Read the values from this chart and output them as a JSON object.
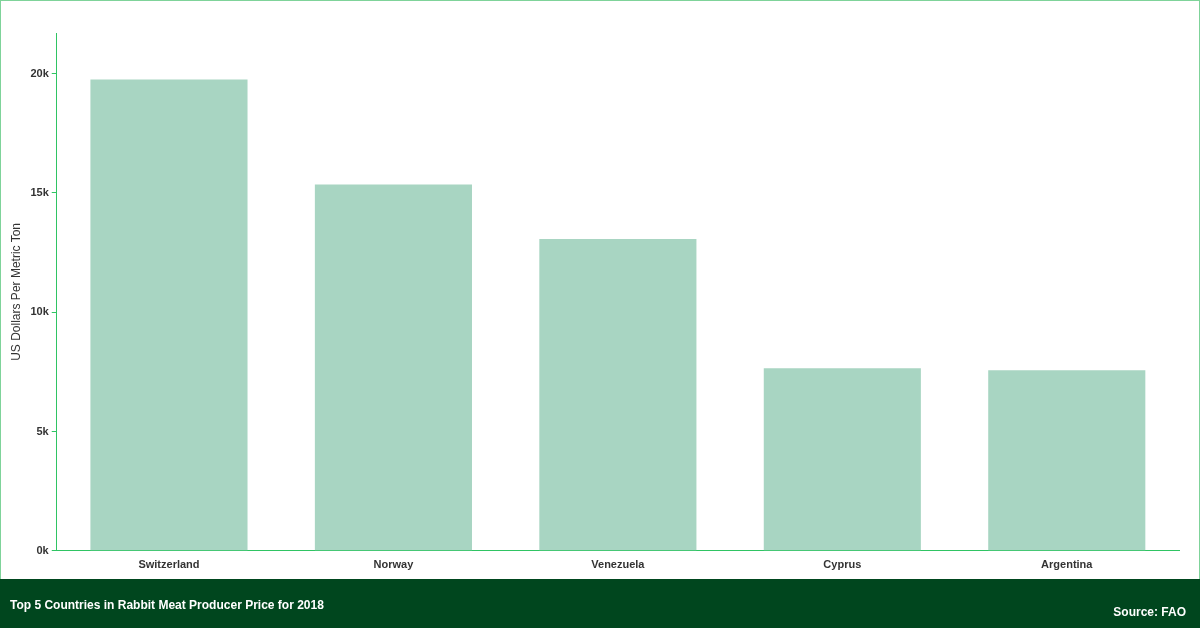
{
  "chart_data": {
    "type": "bar",
    "title": "Top 5 Countries in Rabbit Meat Producer Price for 2018",
    "ylabel": "US Dollars Per Metric Ton",
    "categories": [
      "Switzerland",
      "Norway",
      "Venezuela",
      "Cyprus",
      "Argentina"
    ],
    "values": [
      19750,
      15350,
      13070,
      7650,
      7570
    ],
    "color": "#a8d5c2",
    "ylim": [
      0,
      21700
    ],
    "yticks": [
      {
        "value": 0,
        "label": "0k"
      },
      {
        "value": 5000,
        "label": "5k"
      },
      {
        "value": 10000,
        "label": "10k"
      },
      {
        "value": 15000,
        "label": "15k"
      },
      {
        "value": 20000,
        "label": "20k"
      }
    ],
    "grid": false,
    "legend": false,
    "annotations": [
      "Source:  FAO"
    ]
  }
}
